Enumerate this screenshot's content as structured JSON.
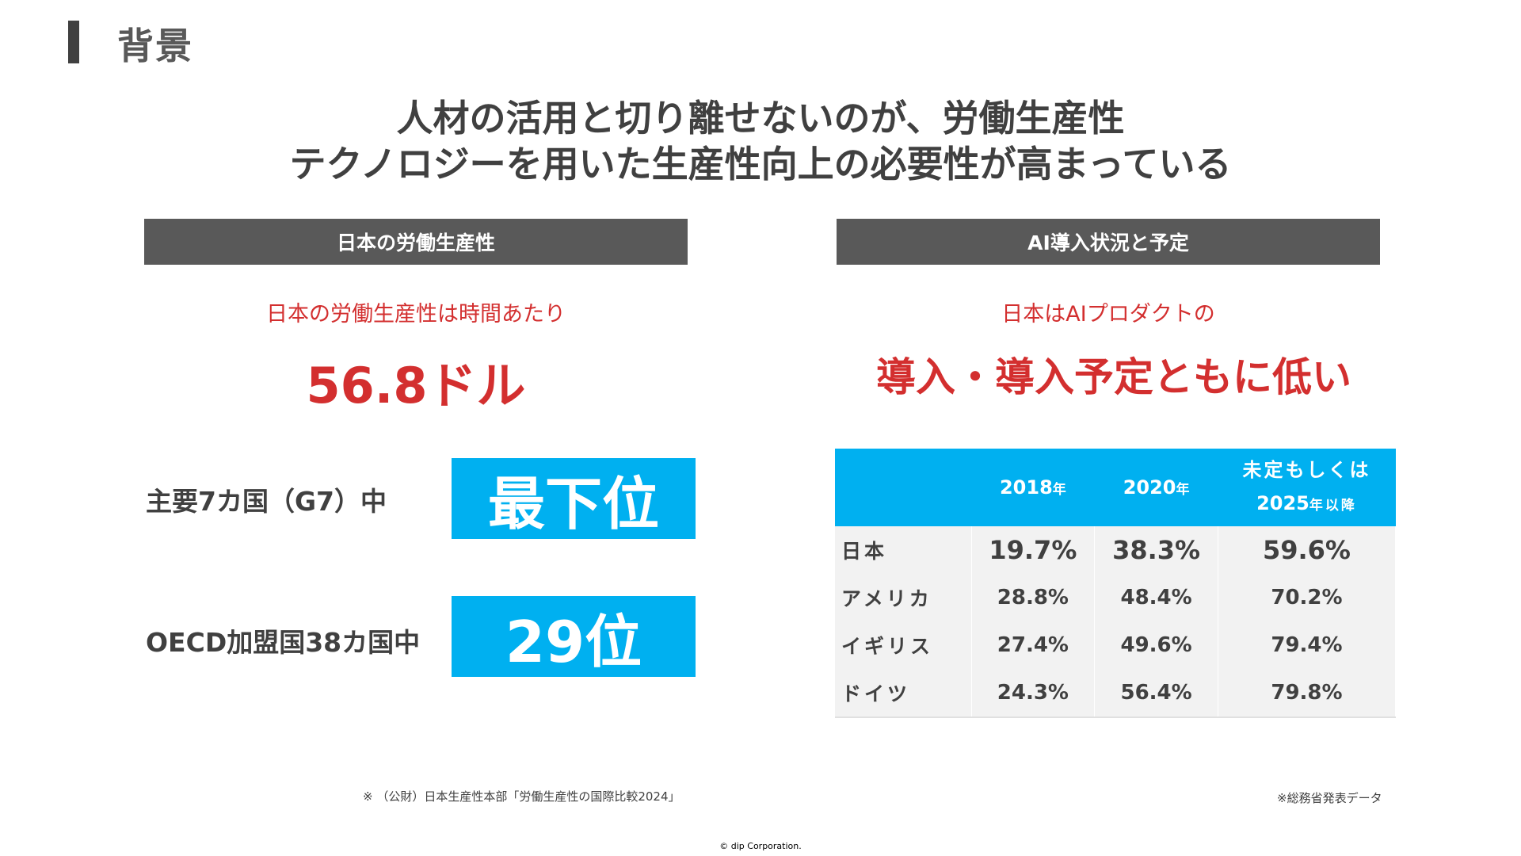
{
  "header": {
    "section_title": "背景",
    "headline_line1": "人材の活用と切り離せないのが、労働生産性",
    "headline_line2": "テクノロジーを用いた生産性向上の必要性が高まっている"
  },
  "left_panel": {
    "header": "日本の労働生産性",
    "lead": "日本の労働生産性は時間あたり",
    "value": "56.8ドル",
    "ranks": [
      {
        "label": "主要7カ国（G7）中",
        "rank": "最下位"
      },
      {
        "label": "OECD加盟国38カ国中",
        "rank": "29位"
      }
    ],
    "footnote": "※ （公財）日本生産性本部「労働生産性の国際比較2024」"
  },
  "right_panel": {
    "header": "AI導入状況と予定",
    "lead": "日本はAIプロダクトの",
    "headline": "導入・導入予定ともに低い",
    "table": {
      "columns": [
        {
          "year": "2018",
          "unit": "年"
        },
        {
          "year": "2020",
          "unit": "年"
        }
      ],
      "future_column": {
        "line1": "未定もしくは",
        "year": "2025",
        "unit": "年以降"
      },
      "rows": [
        {
          "country": "日本",
          "values": [
            "19.7%",
            "38.3%",
            "59.6%"
          ]
        },
        {
          "country": "アメリカ",
          "values": [
            "28.8%",
            "48.4%",
            "70.2%"
          ]
        },
        {
          "country": "イギリス",
          "values": [
            "27.4%",
            "49.6%",
            "79.4%"
          ]
        },
        {
          "country": "ドイツ",
          "values": [
            "24.3%",
            "56.4%",
            "79.8%"
          ]
        }
      ]
    },
    "footnote": "※総務省発表データ"
  },
  "footer": {
    "copyright": "© dip Corporation."
  },
  "colors": {
    "accent_blue": "#00b0f0",
    "accent_red": "#d32f2f",
    "header_gray": "#595959"
  }
}
